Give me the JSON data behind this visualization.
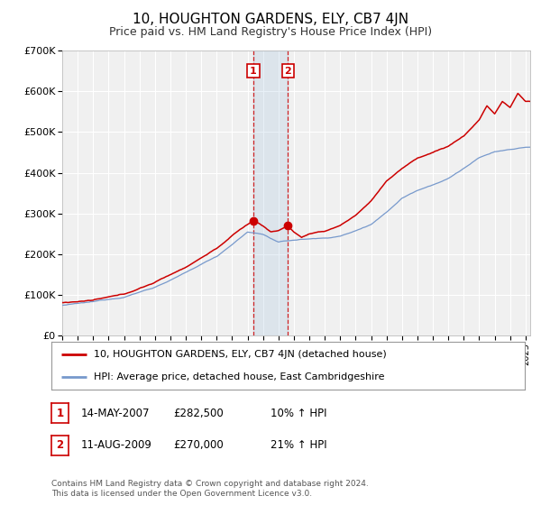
{
  "title": "10, HOUGHTON GARDENS, ELY, CB7 4JN",
  "subtitle": "Price paid vs. HM Land Registry's House Price Index (HPI)",
  "ylim": [
    0,
    700000
  ],
  "yticks": [
    0,
    100000,
    200000,
    300000,
    400000,
    500000,
    600000,
    700000
  ],
  "ytick_labels": [
    "£0",
    "£100K",
    "£200K",
    "£300K",
    "£400K",
    "£500K",
    "£600K",
    "£700K"
  ],
  "background_color": "#ffffff",
  "plot_bg_color": "#f0f0f0",
  "grid_color": "#ffffff",
  "red_color": "#cc0000",
  "blue_color": "#7799cc",
  "marker1_date_x": 2007.37,
  "marker2_date_x": 2009.62,
  "marker1_y": 282500,
  "marker2_y": 270000,
  "vspan_x1": 2007.37,
  "vspan_x2": 2009.62,
  "legend_line1": "10, HOUGHTON GARDENS, ELY, CB7 4JN (detached house)",
  "legend_line2": "HPI: Average price, detached house, East Cambridgeshire",
  "table_row1": [
    "1",
    "14-MAY-2007",
    "£282,500",
    "10% ↑ HPI"
  ],
  "table_row2": [
    "2",
    "11-AUG-2009",
    "£270,000",
    "21% ↑ HPI"
  ],
  "footer1": "Contains HM Land Registry data © Crown copyright and database right 2024.",
  "footer2": "This data is licensed under the Open Government Licence v3.0.",
  "xlim_start": 1995.0,
  "xlim_end": 2025.3,
  "title_fontsize": 11,
  "subtitle_fontsize": 9,
  "num_box_label1": "1",
  "num_box_label2": "2"
}
